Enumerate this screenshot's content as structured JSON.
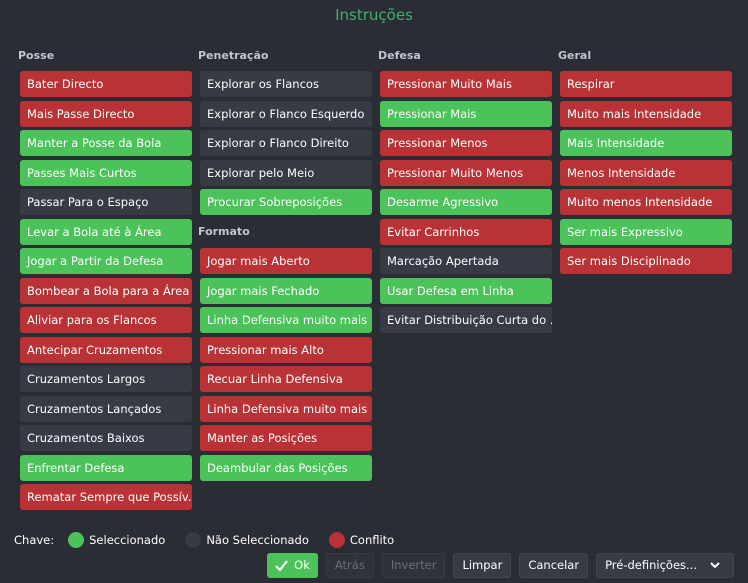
{
  "title": "Instruções",
  "columns": [
    {
      "sections": [
        {
          "header": "Posse",
          "items": [
            {
              "label": "Bater Directo",
              "state": "conflict"
            },
            {
              "label": "Mais Passe Directo",
              "state": "conflict"
            },
            {
              "label": "Manter a Posse da Bola",
              "state": "selected"
            },
            {
              "label": "Passes Mais Curtos",
              "state": "selected"
            },
            {
              "label": "Passar Para o Espaço",
              "state": "unselected"
            },
            {
              "label": "Levar a Bola até à Área",
              "state": "selected"
            },
            {
              "label": "Jogar a Partir da Defesa",
              "state": "selected"
            },
            {
              "label": "Bombear a Bola para a Área",
              "state": "conflict"
            },
            {
              "label": "Aliviar para os Flancos",
              "state": "conflict"
            },
            {
              "label": "Antecipar Cruzamentos",
              "state": "conflict"
            },
            {
              "label": "Cruzamentos Largos",
              "state": "unselected"
            },
            {
              "label": "Cruzamentos Lançados",
              "state": "unselected"
            },
            {
              "label": "Cruzamentos Baixos",
              "state": "unselected"
            },
            {
              "label": "Enfrentar Defesa",
              "state": "selected"
            },
            {
              "label": "Rematar Sempre que Possív...",
              "state": "conflict"
            }
          ]
        }
      ]
    },
    {
      "sections": [
        {
          "header": "Penetração",
          "items": [
            {
              "label": "Explorar os Flancos",
              "state": "unselected"
            },
            {
              "label": "Explorar o Flanco Esquerdo",
              "state": "unselected"
            },
            {
              "label": "Explorar o Flanco Direito",
              "state": "unselected"
            },
            {
              "label": "Explorar pelo Meio",
              "state": "unselected"
            },
            {
              "label": "Procurar Sobreposições",
              "state": "selected"
            }
          ]
        },
        {
          "header": "Formato",
          "items": [
            {
              "label": "Jogar mais Aberto",
              "state": "conflict"
            },
            {
              "label": "Jogar mais Fechado",
              "state": "selected"
            },
            {
              "label": "Linha Defensiva muito mais ...",
              "state": "selected"
            },
            {
              "label": "Pressionar mais Alto",
              "state": "conflict"
            },
            {
              "label": "Recuar Linha Defensiva",
              "state": "conflict"
            },
            {
              "label": "Linha Defensiva muito mais ...",
              "state": "conflict"
            },
            {
              "label": "Manter as Posições",
              "state": "conflict"
            },
            {
              "label": "Deambular das Posições",
              "state": "selected"
            }
          ]
        }
      ]
    },
    {
      "sections": [
        {
          "header": "Defesa",
          "items": [
            {
              "label": "Pressionar Muito Mais",
              "state": "conflict"
            },
            {
              "label": "Pressionar Mais",
              "state": "selected"
            },
            {
              "label": "Pressionar Menos",
              "state": "conflict"
            },
            {
              "label": "Pressionar Muito Menos",
              "state": "conflict"
            },
            {
              "label": "Desarme Agressivo",
              "state": "selected"
            },
            {
              "label": "Evitar Carrinhos",
              "state": "conflict"
            },
            {
              "label": "Marcação Apertada",
              "state": "unselected"
            },
            {
              "label": "Usar Defesa em Linha",
              "state": "selected"
            },
            {
              "label": "Evitar Distribuição Curta do ...",
              "state": "unselected"
            }
          ]
        }
      ]
    },
    {
      "sections": [
        {
          "header": "Geral",
          "items": [
            {
              "label": "Respirar",
              "state": "conflict"
            },
            {
              "label": "Muito mais Intensidade",
              "state": "conflict"
            },
            {
              "label": "Mais Intensidade",
              "state": "selected"
            },
            {
              "label": "Menos Intensidade",
              "state": "conflict"
            },
            {
              "label": "Muito menos Intensidade",
              "state": "conflict"
            },
            {
              "label": "Ser mais Expressivo",
              "state": "selected"
            },
            {
              "label": "Ser mais Disciplinado",
              "state": "conflict"
            }
          ]
        }
      ]
    }
  ],
  "key": {
    "label": "Chave:",
    "items": [
      {
        "label": "Seleccionado",
        "state": "selected"
      },
      {
        "label": "Não Seleccionado",
        "state": "unselected"
      },
      {
        "label": "Conflito",
        "state": "conflict"
      }
    ]
  },
  "buttons": [
    {
      "label": "Ok",
      "enabled": true,
      "primary": true
    },
    {
      "label": "Atrás",
      "enabled": false
    },
    {
      "label": "Inverter",
      "enabled": false
    },
    {
      "label": "Limpar",
      "enabled": true
    },
    {
      "label": "Cancelar",
      "enabled": true
    },
    {
      "label": "Pré-definições...",
      "enabled": true,
      "dropdown": true
    }
  ]
}
